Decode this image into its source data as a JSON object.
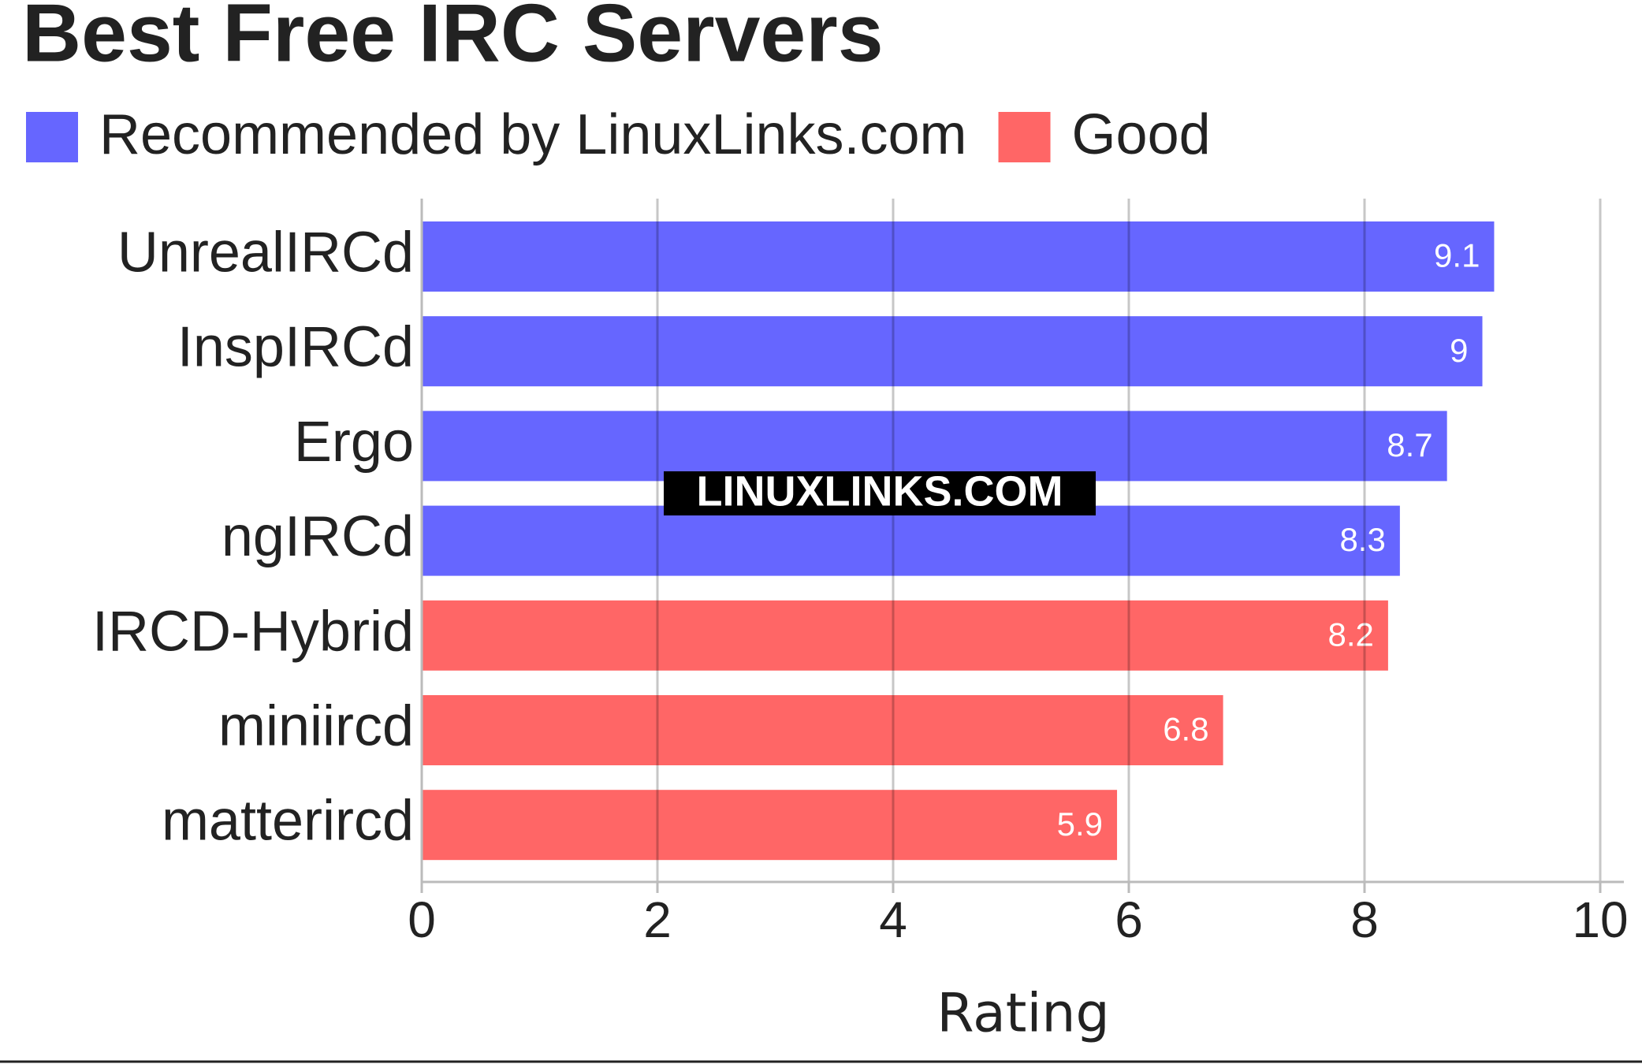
{
  "chart_data": {
    "type": "bar",
    "orientation": "horizontal",
    "title": "Best Free IRC Servers",
    "categories": [
      "UnrealIRCd",
      "InspIRCd",
      "Ergo",
      "ngIRCd",
      "IRCD-Hybrid",
      "miniircd",
      "matterircd"
    ],
    "series": [
      {
        "name": "Recommended by LinuxLinks.com",
        "color": "#6666ff",
        "values": [
          9.1,
          9,
          8.7,
          8.3,
          null,
          null,
          null
        ]
      },
      {
        "name": "Good",
        "color": "#ff6666",
        "values": [
          null,
          null,
          null,
          null,
          8.2,
          6.8,
          5.9
        ]
      }
    ],
    "xlabel": "Rating",
    "xlim": [
      0,
      10
    ],
    "xticks": [
      0,
      2,
      4,
      6,
      8,
      10
    ],
    "grid": true,
    "watermark": "LINUXLINKS.COM"
  }
}
